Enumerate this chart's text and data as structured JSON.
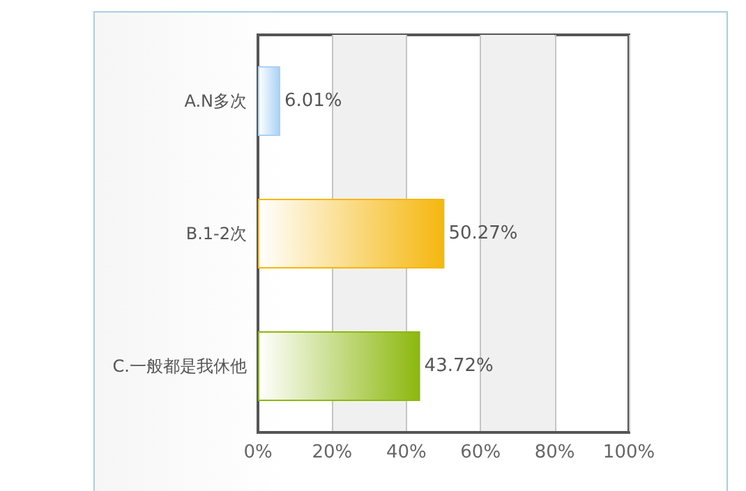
{
  "chart_data": {
    "type": "bar",
    "orientation": "horizontal",
    "categories": [
      "A.N多次",
      "B.1-2次",
      "C.一般都是我休他"
    ],
    "values": [
      6.01,
      50.27,
      43.72
    ],
    "colors": [
      "#a9d1f5",
      "#f5b70f",
      "#8cb80e"
    ],
    "value_labels": [
      "6.01%",
      "50.27%",
      "43.72%"
    ],
    "xlim": [
      0,
      100
    ],
    "xticks": [
      {
        "value": 0,
        "label": "0%"
      },
      {
        "value": 20,
        "label": "20%"
      },
      {
        "value": 40,
        "label": "40%"
      },
      {
        "value": 60,
        "label": "60%"
      },
      {
        "value": 80,
        "label": "80%"
      },
      {
        "value": 100,
        "label": "100%"
      }
    ],
    "grid": "x"
  }
}
